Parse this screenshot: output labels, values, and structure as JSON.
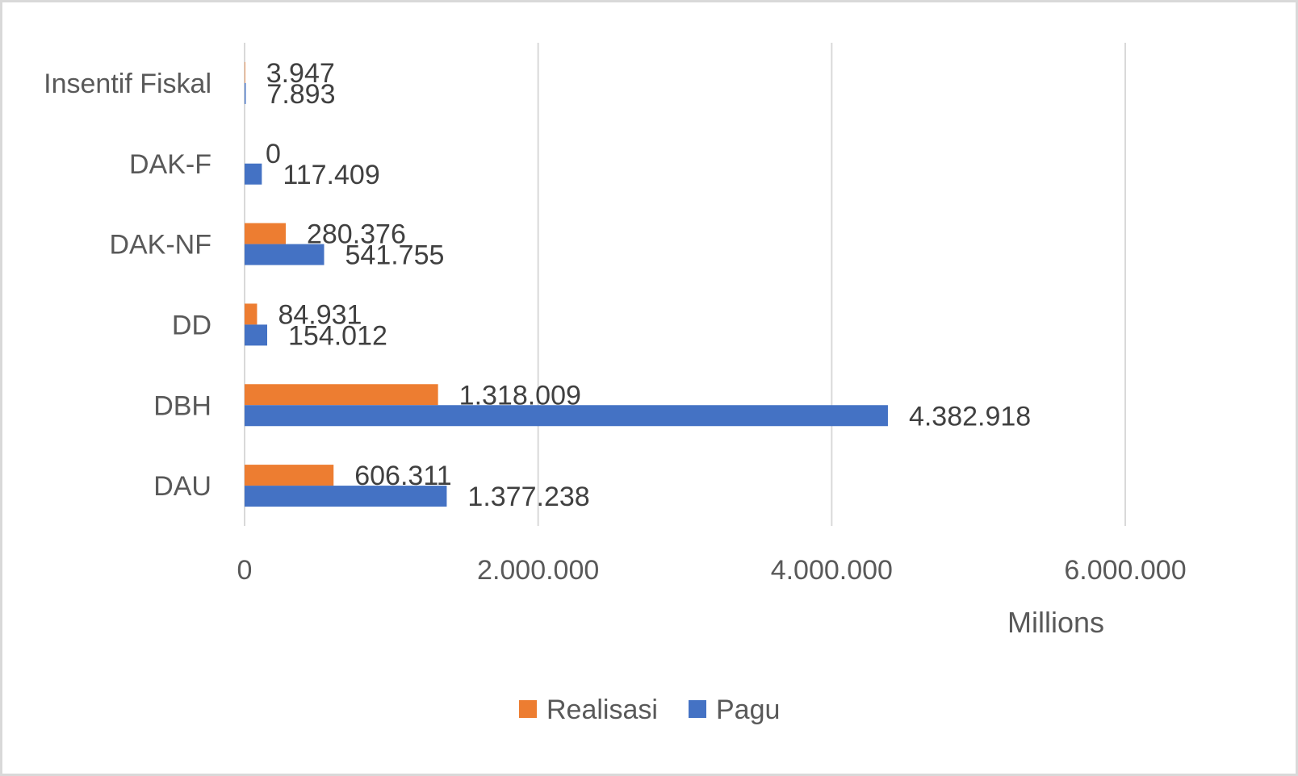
{
  "chart_data": {
    "type": "bar",
    "orientation": "horizontal",
    "categories": [
      "DAU",
      "DBH",
      "DD",
      "DAK-NF",
      "DAK-F",
      "Insentif Fiskal"
    ],
    "series": [
      {
        "name": "Realisasi",
        "color": "#ed7d31",
        "values": [
          606311,
          1318009,
          84931,
          280376,
          0,
          3947
        ],
        "labels": [
          "606.311",
          "1.318.009",
          "84.931",
          "280.376",
          "0",
          "3.947"
        ]
      },
      {
        "name": "Pagu",
        "color": "#4472c4",
        "values": [
          1377238,
          4382918,
          154012,
          541755,
          117409,
          7893
        ],
        "labels": [
          "1.377.238",
          "4.382.918",
          "154.012",
          "541.755",
          "117.409",
          "7.893"
        ]
      }
    ],
    "xlim": [
      0,
      6000000
    ],
    "xticks": [
      0,
      2000000,
      4000000,
      6000000
    ],
    "xtick_labels": [
      "0",
      "2.000.000",
      "4.000.000",
      "6.000.000"
    ],
    "display_unit": "Millions",
    "gridlines": true,
    "legend": {
      "position": "bottom",
      "entries": [
        "Realisasi",
        "Pagu"
      ]
    }
  }
}
